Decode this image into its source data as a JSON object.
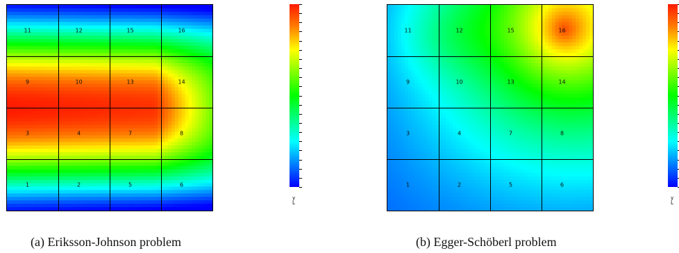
{
  "panels": [
    {
      "id": "a",
      "caption": "(a) Eriksson-Johnson problem",
      "field": "eriksson-johnson",
      "cells": [
        {
          "label": "11",
          "row": 0,
          "col": 0
        },
        {
          "label": "12",
          "row": 0,
          "col": 1
        },
        {
          "label": "15",
          "row": 0,
          "col": 2
        },
        {
          "label": "16",
          "row": 0,
          "col": 3
        },
        {
          "label": "9",
          "row": 1,
          "col": 0
        },
        {
          "label": "10",
          "row": 1,
          "col": 1
        },
        {
          "label": "13",
          "row": 1,
          "col": 2
        },
        {
          "label": "14",
          "row": 1,
          "col": 3
        },
        {
          "label": "3",
          "row": 2,
          "col": 0
        },
        {
          "label": "4",
          "row": 2,
          "col": 1
        },
        {
          "label": "7",
          "row": 2,
          "col": 2
        },
        {
          "label": "8",
          "row": 2,
          "col": 3
        },
        {
          "label": "1",
          "row": 3,
          "col": 0
        },
        {
          "label": "2",
          "row": 3,
          "col": 1
        },
        {
          "label": "5",
          "row": 3,
          "col": 2
        },
        {
          "label": "6",
          "row": 3,
          "col": 3
        }
      ],
      "colorbar": {
        "top": "#ff1a00",
        "bottom": "#0000ff"
      },
      "axis_glyph": "y\nL"
    },
    {
      "id": "b",
      "caption": "(b) Egger-Schöberl problem",
      "field": "egger-schoberl",
      "cells": [
        {
          "label": "11",
          "row": 0,
          "col": 0
        },
        {
          "label": "12",
          "row": 0,
          "col": 1
        },
        {
          "label": "15",
          "row": 0,
          "col": 2
        },
        {
          "label": "16",
          "row": 0,
          "col": 3
        },
        {
          "label": "9",
          "row": 1,
          "col": 0
        },
        {
          "label": "10",
          "row": 1,
          "col": 1
        },
        {
          "label": "13",
          "row": 1,
          "col": 2
        },
        {
          "label": "14",
          "row": 1,
          "col": 3
        },
        {
          "label": "3",
          "row": 2,
          "col": 0
        },
        {
          "label": "4",
          "row": 2,
          "col": 1
        },
        {
          "label": "7",
          "row": 2,
          "col": 2
        },
        {
          "label": "8",
          "row": 2,
          "col": 3
        },
        {
          "label": "1",
          "row": 3,
          "col": 0
        },
        {
          "label": "2",
          "row": 3,
          "col": 1
        },
        {
          "label": "5",
          "row": 3,
          "col": 2
        },
        {
          "label": "6",
          "row": 3,
          "col": 3
        }
      ],
      "colorbar": {
        "top": "#ff1a00",
        "bottom": "#0000ff"
      },
      "axis_glyph": "y\nL"
    }
  ],
  "colormap": [
    "#0000ff",
    "#0080ff",
    "#00ffff",
    "#00ff80",
    "#00ff00",
    "#80ff00",
    "#ffff00",
    "#ff8000",
    "#ff1a00"
  ]
}
